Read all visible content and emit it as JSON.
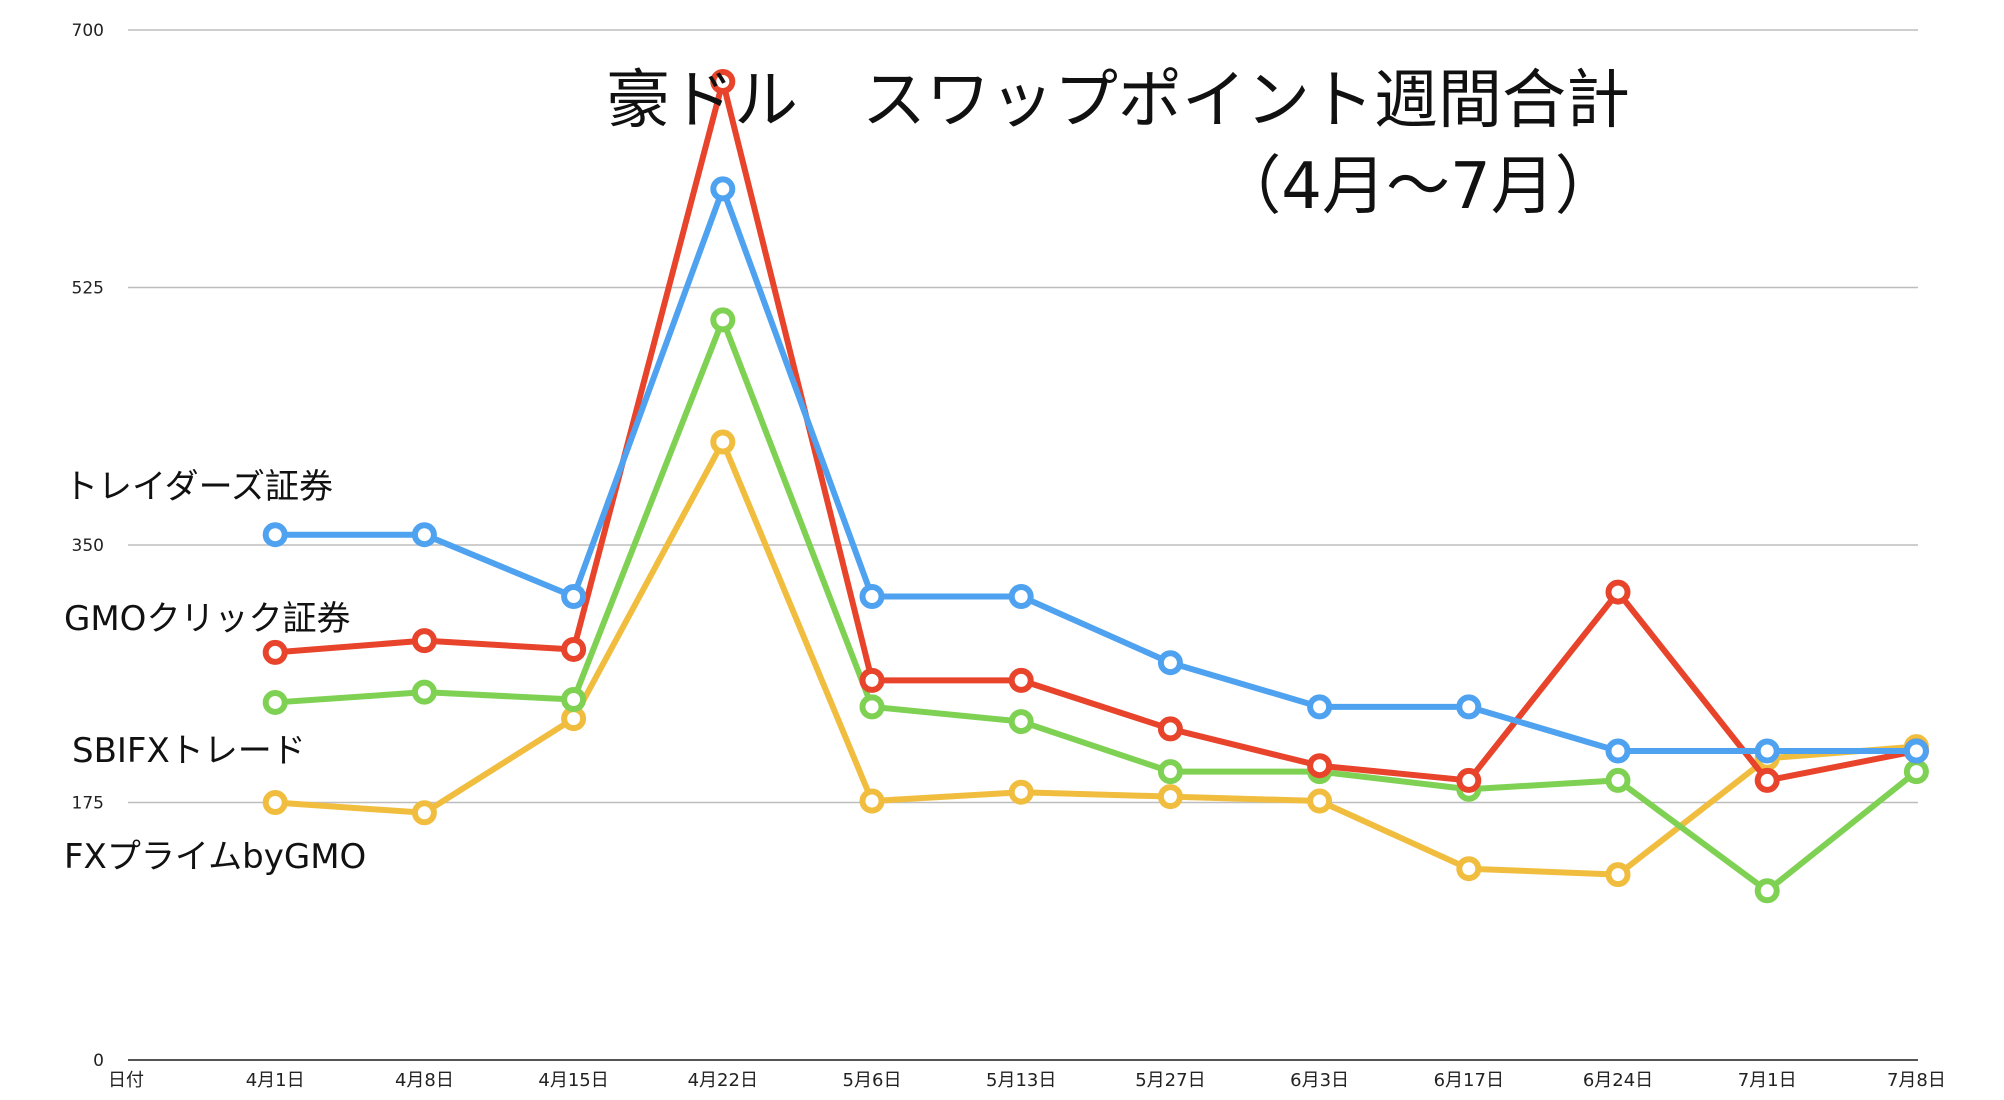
{
  "chart_data": {
    "type": "line",
    "title": "豪ドル　スワップポイント週間合計",
    "subtitle": "（4月〜7月）",
    "categories": [
      "日付",
      "4月1日",
      "4月8日",
      "4月15日",
      "4月22日",
      "5月6日",
      "5月13日",
      "5月27日",
      "6月3日",
      "6月17日",
      "6月24日",
      "7月1日",
      "7月8日"
    ],
    "yticks": [
      0,
      175,
      350,
      525,
      700
    ],
    "ylim": [
      0,
      700
    ],
    "grid": true,
    "series": [
      {
        "name": "トレイダーズ証券",
        "color": "#4ea2f0",
        "values": [
          null,
          357,
          357,
          315,
          592,
          315,
          315,
          270,
          240,
          240,
          210,
          210,
          210
        ]
      },
      {
        "name": "GMOクリック証券",
        "color": "#e8432b",
        "values": [
          null,
          277,
          285,
          279,
          665,
          258,
          258,
          225,
          200,
          190,
          318,
          190,
          210
        ]
      },
      {
        "name": "SBIFXトレード",
        "color": "#7fd153",
        "values": [
          null,
          243,
          250,
          245,
          503,
          240,
          230,
          196,
          196,
          184,
          190,
          115,
          196
        ]
      },
      {
        "name": "FXプライムbyGMO",
        "color": "#f0bd3f",
        "values": [
          null,
          175,
          168,
          232,
          420,
          176,
          182,
          179,
          176,
          130,
          126,
          205,
          213
        ]
      }
    ]
  }
}
